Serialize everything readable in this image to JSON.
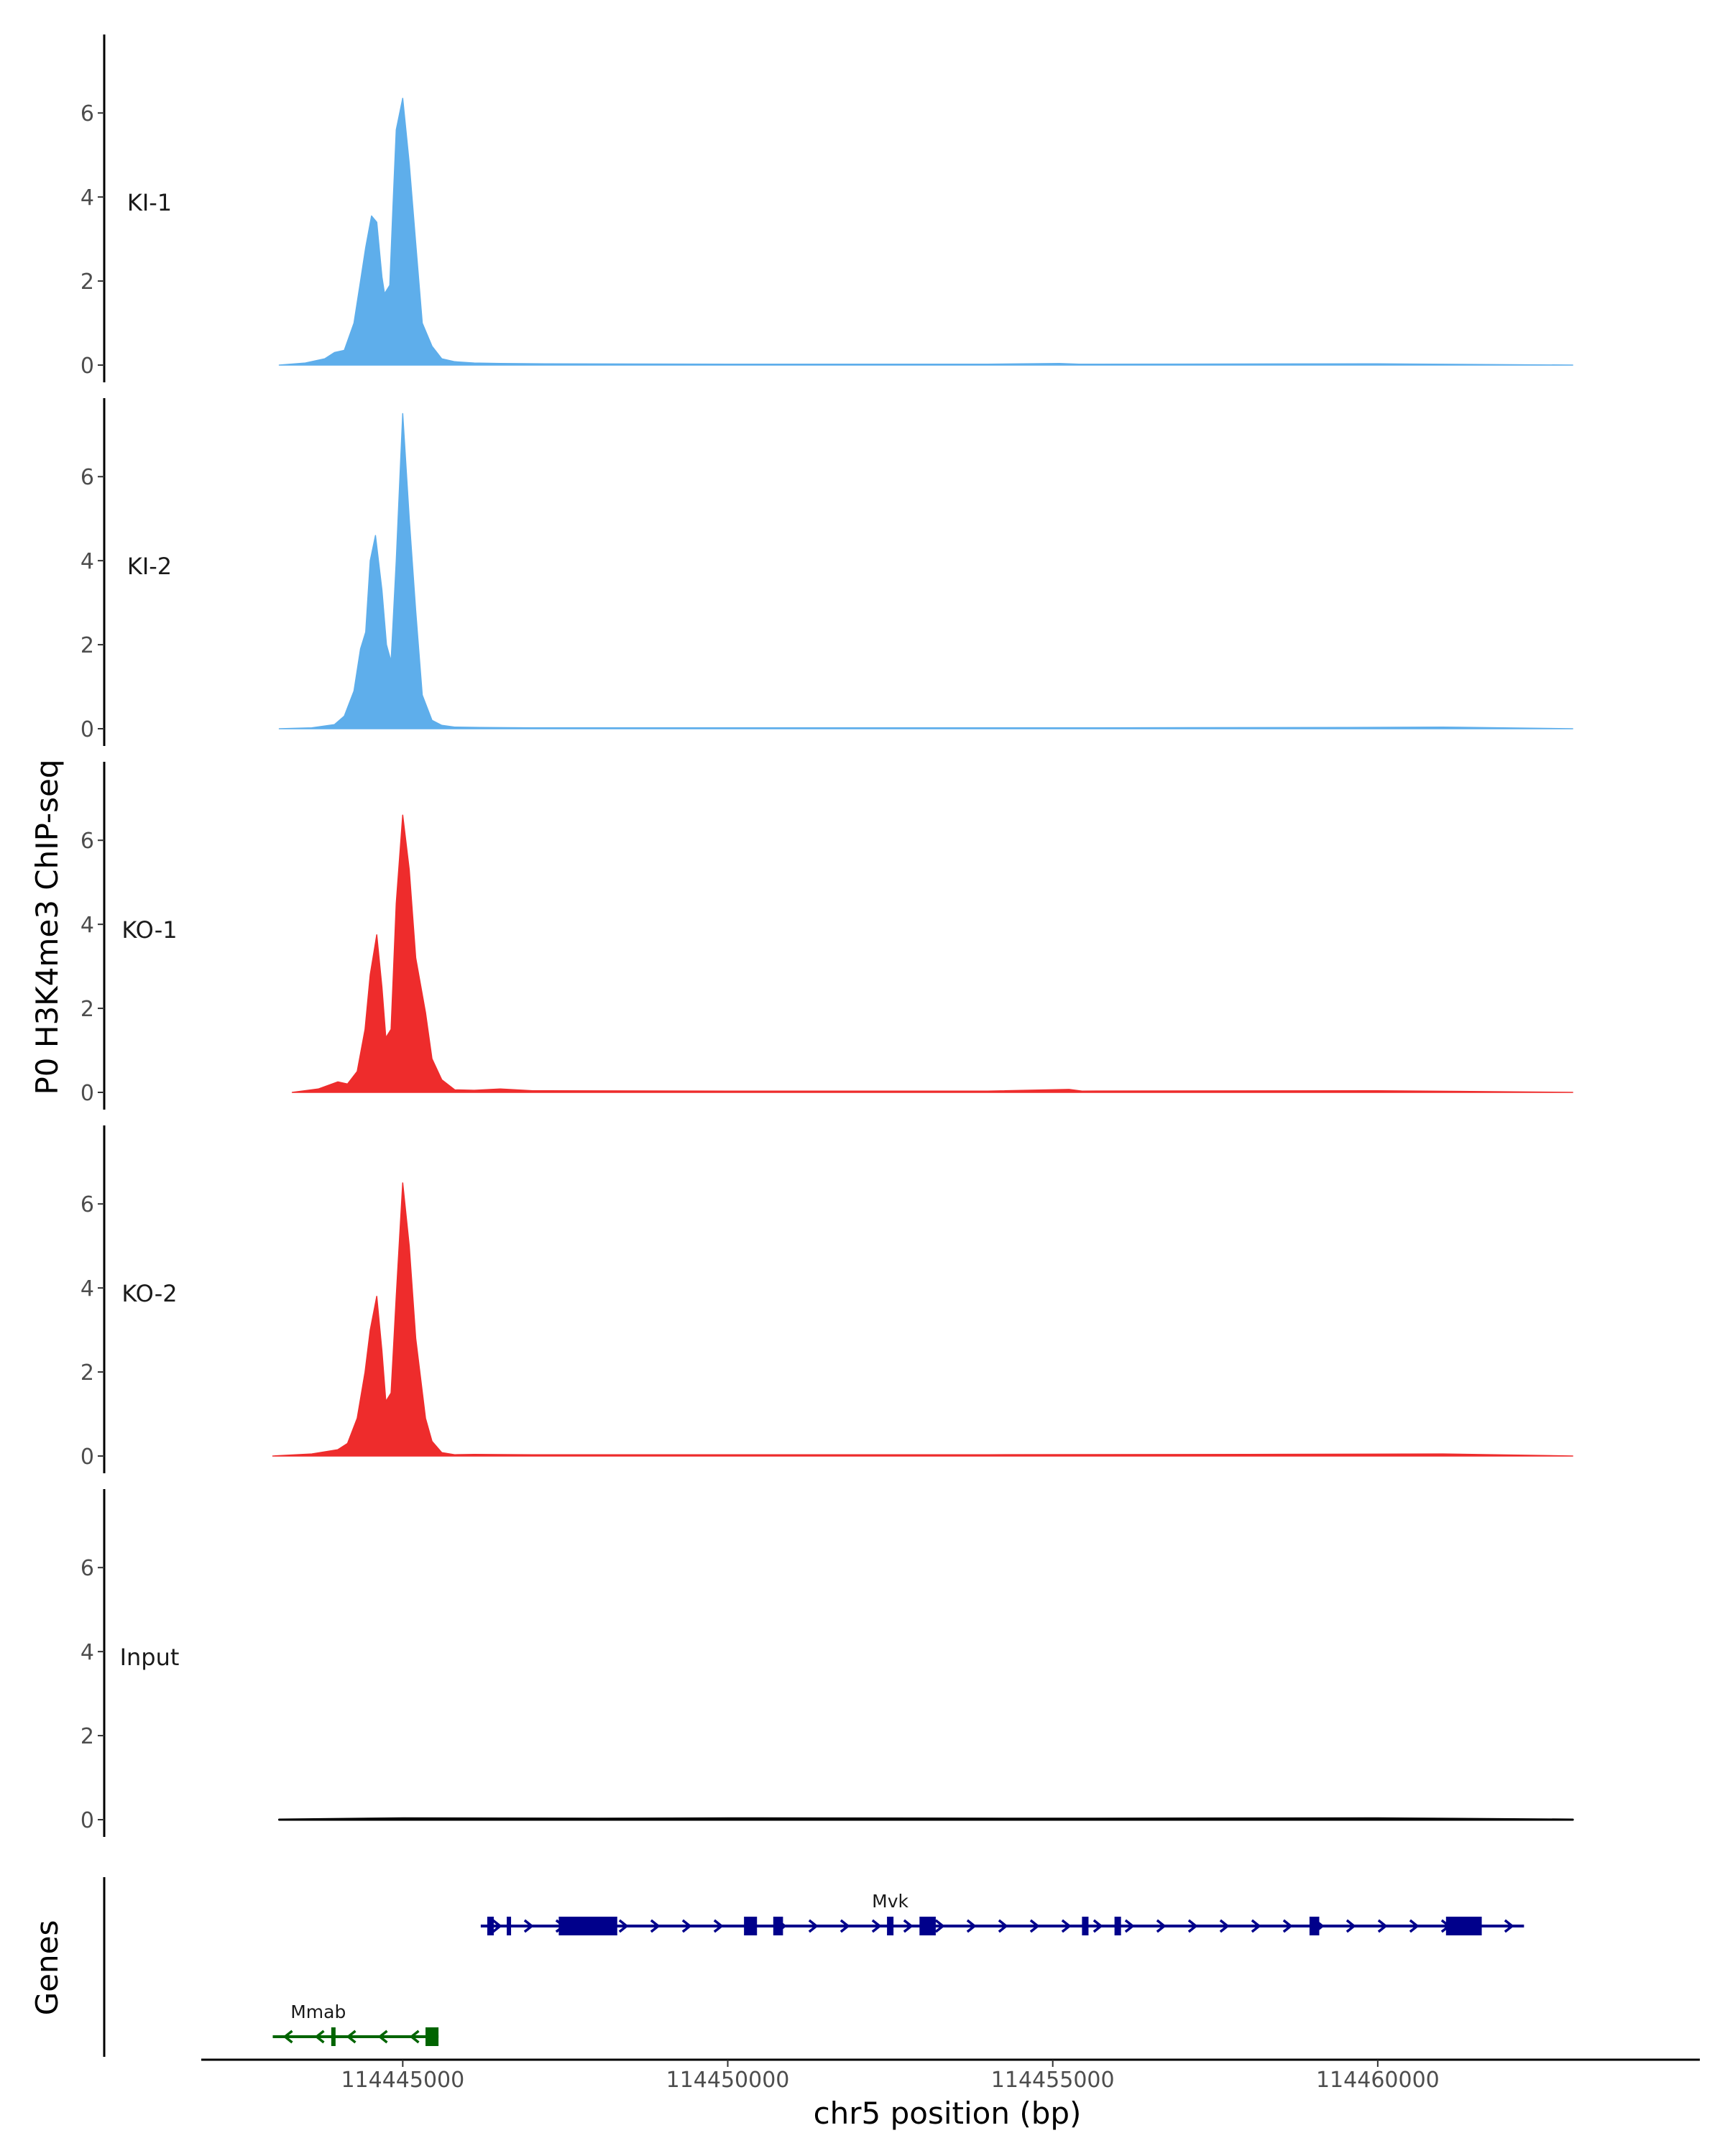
{
  "chart_data": {
    "type": "area",
    "title": "",
    "ylabel": "P0 H3K4me3 ChIP-seq",
    "xlabel": "chr5 position (bp)",
    "ylim": [
      0,
      7.8
    ],
    "yticks": [
      0,
      2,
      4,
      6
    ],
    "xlim": [
      114441900,
      114464900
    ],
    "xticks": [
      114445000,
      114450000,
      114455000,
      114460000
    ],
    "xtick_labels": [
      "114445000",
      "114450000",
      "114455000",
      "114460000"
    ],
    "colors": {
      "KI": "#5eaeeb",
      "KO": "#ee2c2c",
      "Input": "#000000",
      "gene_plus": "#00008b",
      "gene_minus": "#006400"
    },
    "tracks": [
      {
        "name": "KI-1",
        "color": "#5eaeeb",
        "x": [
          114443100,
          114443500,
          114443800,
          114443950,
          114444100,
          114444250,
          114444350,
          114444430,
          114444520,
          114444600,
          114444680,
          114444720,
          114444800,
          114444850,
          114444900,
          114445000,
          114445100,
          114445200,
          114445300,
          114445450,
          114445600,
          114445800,
          114446100,
          114446500,
          114447200,
          114450000,
          114454000,
          114455100,
          114455250,
          114455400,
          114460000,
          114463000
        ],
        "y": [
          0,
          0.05,
          0.15,
          0.3,
          0.35,
          1.0,
          2.0,
          2.8,
          3.55,
          3.4,
          2.1,
          1.7,
          1.9,
          3.8,
          5.6,
          6.35,
          4.8,
          2.9,
          1.0,
          0.45,
          0.15,
          0.08,
          0.05,
          0.04,
          0.03,
          0.02,
          0.02,
          0.04,
          0.03,
          0.02,
          0.03,
          0
        ]
      },
      {
        "name": "KI-2",
        "color": "#5eaeeb",
        "x": [
          114443100,
          114443600,
          114443950,
          114444100,
          114444250,
          114444350,
          114444430,
          114444500,
          114444580,
          114444680,
          114444750,
          114444820,
          114444900,
          114445000,
          114445100,
          114445200,
          114445300,
          114445450,
          114445600,
          114445800,
          114446200,
          114447000,
          114450000,
          114455000,
          114459500,
          114461000,
          114463000
        ],
        "y": [
          0,
          0.02,
          0.1,
          0.3,
          0.9,
          1.9,
          2.3,
          4.0,
          4.6,
          3.3,
          2.0,
          1.6,
          4.0,
          7.5,
          5.0,
          2.8,
          0.8,
          0.2,
          0.08,
          0.04,
          0.03,
          0.02,
          0.02,
          0.02,
          0.03,
          0.04,
          0
        ]
      },
      {
        "name": "KO-1",
        "color": "#ee2c2c",
        "x": [
          114443300,
          114443700,
          114444000,
          114444150,
          114444300,
          114444420,
          114444500,
          114444600,
          114444680,
          114444740,
          114444820,
          114444900,
          114445000,
          114445100,
          114445200,
          114445350,
          114445450,
          114445600,
          114445800,
          114446100,
          114446500,
          114447000,
          114450000,
          114454000,
          114455250,
          114455450,
          114460000,
          114463000
        ],
        "y": [
          0,
          0.08,
          0.25,
          0.2,
          0.5,
          1.5,
          2.8,
          3.75,
          2.5,
          1.3,
          1.5,
          4.5,
          6.6,
          5.3,
          3.2,
          1.9,
          0.8,
          0.3,
          0.06,
          0.05,
          0.08,
          0.04,
          0.03,
          0.03,
          0.07,
          0.03,
          0.04,
          0
        ]
      },
      {
        "name": "KO-2",
        "color": "#ee2c2c",
        "x": [
          114443000,
          114443600,
          114444000,
          114444150,
          114444300,
          114444420,
          114444500,
          114444600,
          114444680,
          114444740,
          114444820,
          114444900,
          114445000,
          114445100,
          114445200,
          114445350,
          114445450,
          114445600,
          114445800,
          114446100,
          114447000,
          114450000,
          114454000,
          114458000,
          114461000,
          114463000
        ],
        "y": [
          0,
          0.05,
          0.15,
          0.3,
          0.9,
          2.0,
          3.0,
          3.8,
          2.5,
          1.3,
          1.5,
          3.8,
          6.5,
          5.0,
          2.8,
          0.9,
          0.35,
          0.08,
          0.03,
          0.04,
          0.03,
          0.03,
          0.03,
          0.04,
          0.05,
          0
        ]
      },
      {
        "name": "Input",
        "color": "#000000",
        "x": [
          114443100,
          114445000,
          114448000,
          114450500,
          114455000,
          114460000,
          114463000
        ],
        "y": [
          0,
          0.03,
          0.02,
          0.03,
          0.02,
          0.03,
          0
        ]
      }
    ],
    "genes_label": "Genes",
    "genes": [
      {
        "name": "Mmab",
        "strand": "-",
        "color": "#006400",
        "start": 114443000,
        "end": 114445550,
        "exons": [
          [
            114443900,
            114443950
          ],
          [
            114445350,
            114445550
          ]
        ]
      },
      {
        "name": "Mvk",
        "strand": "+",
        "color": "#00008b",
        "start": 114446200,
        "end": 114462250,
        "exons": [
          [
            114446300,
            114446400
          ],
          [
            114446600,
            114446650
          ],
          [
            114447400,
            114448300
          ],
          [
            114450250,
            114450450
          ],
          [
            114450700,
            114450850
          ],
          [
            114452450,
            114452550
          ],
          [
            114452950,
            114453200
          ],
          [
            114455450,
            114455550
          ],
          [
            114455950,
            114456050
          ],
          [
            114458950,
            114459100
          ],
          [
            114461050,
            114461600
          ]
        ]
      }
    ]
  }
}
